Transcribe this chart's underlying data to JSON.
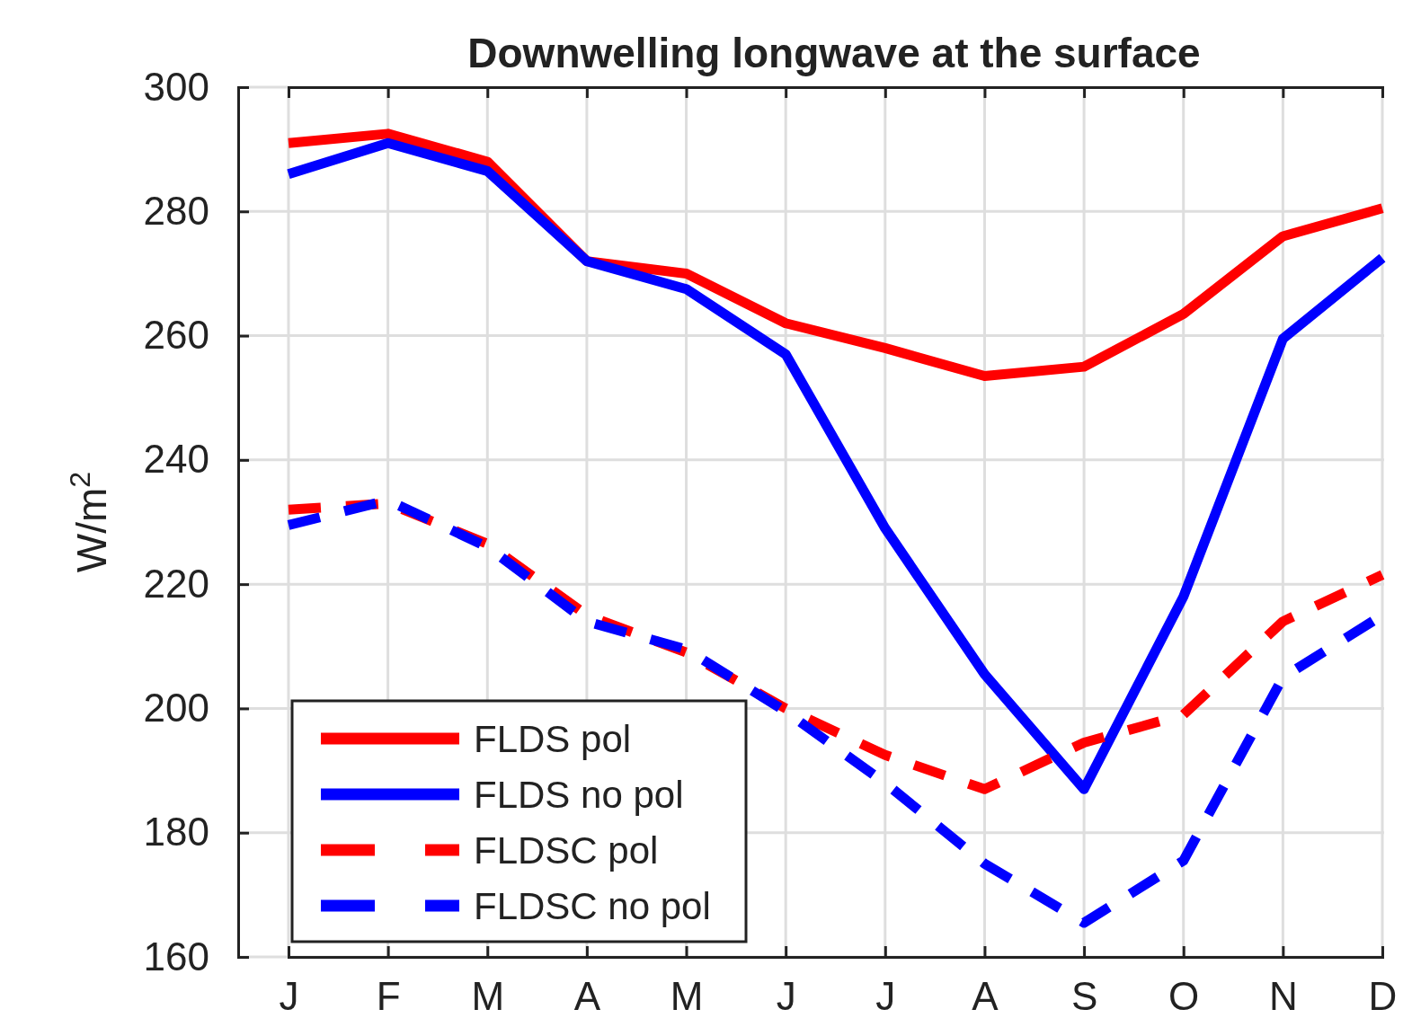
{
  "chart_data": {
    "type": "line",
    "title": "Downwelling longwave at the surface",
    "ylabel": "W/m$^{2}$",
    "categories": [
      "J",
      "F",
      "M",
      "A",
      "M",
      "J",
      "J",
      "A",
      "S",
      "O",
      "N",
      "D"
    ],
    "ylim": [
      160,
      300
    ],
    "yticks": [
      160,
      180,
      200,
      220,
      240,
      260,
      280,
      300
    ],
    "grid": true,
    "legend": "bottom left",
    "series": [
      {
        "name": "FLDS pol",
        "color": "#ff0000",
        "line_style": "solid",
        "values": [
          291,
          292.5,
          288,
          272,
          270,
          262,
          258,
          253.5,
          255,
          263.5,
          276,
          280.5
        ]
      },
      {
        "name": "FLDS no pol",
        "color": "#0000ff",
        "line_style": "solid",
        "values": [
          286,
          291,
          286.5,
          272,
          267.5,
          257,
          229,
          205.5,
          187,
          218,
          259.5,
          272.5
        ]
      },
      {
        "name": "FLDSC pol",
        "color": "#ff0000",
        "line_style": "dashed",
        "values": [
          232,
          233,
          226.5,
          215,
          209,
          200,
          192.5,
          187,
          194.5,
          199,
          214,
          221.5
        ]
      },
      {
        "name": "FLDSC no pol",
        "color": "#0000ff",
        "line_style": "dashed",
        "values": [
          229.5,
          233.5,
          226,
          214,
          209.5,
          199.5,
          188,
          175,
          165.5,
          175.5,
          205,
          215
        ]
      }
    ]
  }
}
